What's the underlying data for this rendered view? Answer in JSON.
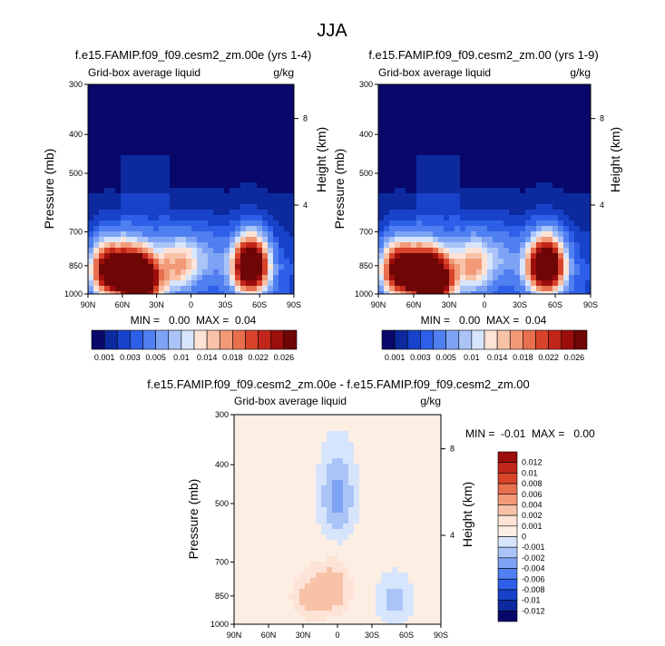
{
  "figure": {
    "title": "JJA"
  },
  "chart_data": [
    {
      "type": "heatmap",
      "title": "f.e15.FAMIP.f09_f09.cesm2_zm.00e (yrs 1-4)",
      "left_label": "Grid-box average liquid",
      "right_label": "g/kg",
      "xlabel": "",
      "ylabel": "Pressure (mb)",
      "ylabel_right": "Height (km)",
      "x_ticks": [
        "90N",
        "60N",
        "30N",
        "0",
        "30S",
        "60S",
        "90S"
      ],
      "y_ticks": [
        "300",
        "400",
        "500",
        "700",
        "850",
        "1000"
      ],
      "y_ticks_right": [
        "8",
        "4"
      ],
      "stats": "MIN =   0.00  MAX =  0.04",
      "colorbar": {
        "labels": [
          "0.001",
          "0.003",
          "0.005",
          "0.01",
          "0.014",
          "0.018",
          "0.022",
          "0.026"
        ],
        "colors": [
          "#08086b",
          "#0c2a9e",
          "#1742c9",
          "#2e5fe8",
          "#4f7ff0",
          "#7ea3f5",
          "#aac4f8",
          "#d7e5fc",
          "#fde3d6",
          "#f8c2a8",
          "#f29a78",
          "#e8704f",
          "#d9432a",
          "#c1261a",
          "#9b0e0c",
          "#6e0606"
        ]
      },
      "features": [
        {
          "lat": 72,
          "p": 870,
          "value": 0.03
        },
        {
          "lat": 50,
          "p": 900,
          "value": 0.026
        },
        {
          "lat": 40,
          "p": 930,
          "value": 0.02
        },
        {
          "lat": 10,
          "p": 840,
          "value": 0.016
        },
        {
          "lat": -15,
          "p": 800,
          "value": 0.006
        },
        {
          "lat": -52,
          "p": 850,
          "value": 0.038
        }
      ]
    },
    {
      "type": "heatmap",
      "title": "f.e15.FAMIP.f09_f09.cesm2_zm.00 (yrs 1-9)",
      "left_label": "Grid-box average liquid",
      "right_label": "g/kg",
      "xlabel": "",
      "ylabel": "Pressure (mb)",
      "ylabel_right": "Height (km)",
      "x_ticks": [
        "90N",
        "60N",
        "30N",
        "0",
        "30S",
        "60S",
        "90S"
      ],
      "y_ticks": [
        "300",
        "400",
        "500",
        "700",
        "850",
        "1000"
      ],
      "y_ticks_right": [
        "8",
        "4"
      ],
      "stats": "MIN =   0.00  MAX =  0.04",
      "colorbar": {
        "labels": [
          "0.001",
          "0.003",
          "0.005",
          "0.01",
          "0.014",
          "0.018",
          "0.022",
          "0.026"
        ],
        "colors": [
          "#08086b",
          "#0c2a9e",
          "#1742c9",
          "#2e5fe8",
          "#4f7ff0",
          "#7ea3f5",
          "#aac4f8",
          "#d7e5fc",
          "#fde3d6",
          "#f8c2a8",
          "#f29a78",
          "#e8704f",
          "#d9432a",
          "#c1261a",
          "#9b0e0c",
          "#6e0606"
        ]
      },
      "features": [
        {
          "lat": 72,
          "p": 870,
          "value": 0.03
        },
        {
          "lat": 50,
          "p": 900,
          "value": 0.026
        },
        {
          "lat": 40,
          "p": 930,
          "value": 0.02
        },
        {
          "lat": 10,
          "p": 840,
          "value": 0.016
        },
        {
          "lat": -15,
          "p": 800,
          "value": 0.006
        },
        {
          "lat": -52,
          "p": 850,
          "value": 0.038
        }
      ]
    },
    {
      "type": "heatmap",
      "title": "f.e15.FAMIP.f09_f09.cesm2_zm.00e - f.e15.FAMIP.f09_f09.cesm2_zm.00",
      "left_label": "Grid-box average liquid",
      "right_label": "g/kg",
      "xlabel": "",
      "ylabel": "Pressure (mb)",
      "ylabel_right": "Height (km)",
      "x_ticks": [
        "90N",
        "60N",
        "30N",
        "0",
        "30S",
        "60S",
        "90S"
      ],
      "y_ticks": [
        "300",
        "400",
        "500",
        "700",
        "850",
        "1000"
      ],
      "y_ticks_right": [
        "8",
        "4"
      ],
      "stats": "MIN =  -0.01  MAX =   0.00",
      "colorbar": {
        "labels": [
          "0.012",
          "0.01",
          "0.008",
          "0.006",
          "0.004",
          "0.002",
          "0.001",
          "0",
          "-0.001",
          "-0.002",
          "-0.004",
          "-0.006",
          "-0.008",
          "-0.01",
          "-0.012"
        ],
        "colors": [
          "#9b0e0c",
          "#c1261a",
          "#d9432a",
          "#e8704f",
          "#f29a78",
          "#f8c2a8",
          "#fde3d6",
          "#fdeee3",
          "#d7e5fc",
          "#aac4f8",
          "#7ea3f5",
          "#4f7ff0",
          "#2e5fe8",
          "#1742c9",
          "#0c2a9e",
          "#08086b"
        ]
      },
      "features": [
        {
          "lat": 5,
          "p": 820,
          "value": 0.003
        },
        {
          "lat": 25,
          "p": 850,
          "value": 0.002
        },
        {
          "lat": 0,
          "p": 480,
          "value": -0.003
        },
        {
          "lat": -50,
          "p": 870,
          "value": -0.002
        }
      ]
    }
  ]
}
